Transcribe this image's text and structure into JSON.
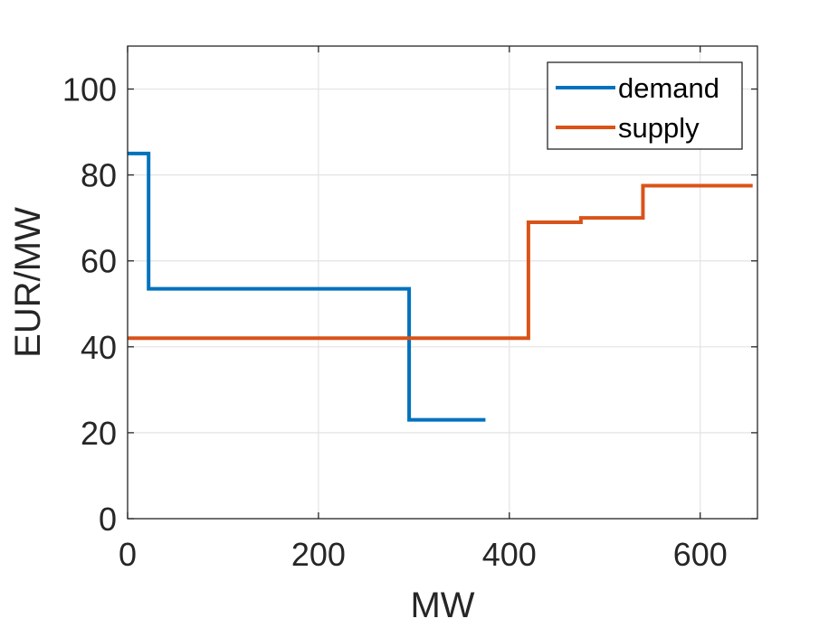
{
  "chart_data": {
    "type": "line",
    "title": "",
    "xlabel": "MW",
    "ylabel": "EUR/MW",
    "xlim": [
      0,
      660
    ],
    "ylim": [
      0,
      110
    ],
    "xticks": [
      0,
      200,
      400,
      600
    ],
    "yticks": [
      0,
      20,
      40,
      60,
      80,
      100
    ],
    "grid": true,
    "legend_position": "top-right",
    "series": [
      {
        "name": "demand",
        "color": "#0072BD",
        "x": [
          0,
          22,
          22,
          295,
          295,
          375
        ],
        "y": [
          85,
          85,
          53.5,
          53.5,
          23,
          23
        ]
      },
      {
        "name": "supply",
        "color": "#D95319",
        "x": [
          0,
          420,
          420,
          475,
          475,
          540,
          540,
          655
        ],
        "y": [
          42,
          42,
          69,
          69,
          70,
          70,
          77.5,
          77.5
        ]
      }
    ]
  }
}
